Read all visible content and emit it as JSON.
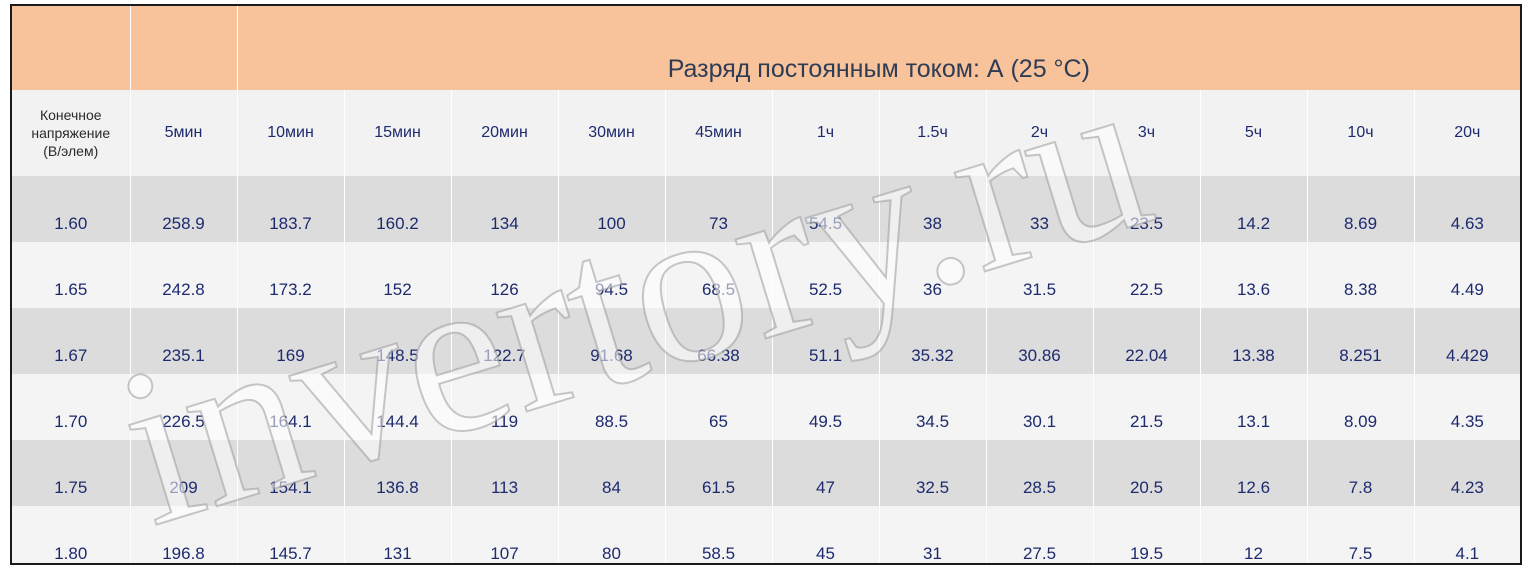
{
  "table": {
    "title": "Разряд постоянным током: А (25 °C)",
    "voltage_header": [
      "Конечное",
      "напряжение",
      "(В/элем)"
    ],
    "columns": [
      "5мин",
      "10мин",
      "15мин",
      "20мин",
      "30мин",
      "45мин",
      "1ч",
      "1.5ч",
      "2ч",
      "3ч",
      "5ч",
      "10ч",
      "20ч"
    ],
    "rows": [
      {
        "voltage": "1.60",
        "values": [
          "258.9",
          "183.7",
          "160.2",
          "134",
          "100",
          "73",
          "54.5",
          "38",
          "33",
          "23.5",
          "14.2",
          "8.69",
          "4.63"
        ]
      },
      {
        "voltage": "1.65",
        "values": [
          "242.8",
          "173.2",
          "152",
          "126",
          "94.5",
          "68.5",
          "52.5",
          "36",
          "31.5",
          "22.5",
          "13.6",
          "8.38",
          "4.49"
        ]
      },
      {
        "voltage": "1.67",
        "values": [
          "235.1",
          "169",
          "148.5",
          "122.7",
          "91.68",
          "66.38",
          "51.1",
          "35.32",
          "30.86",
          "22.04",
          "13.38",
          "8.251",
          "4.429"
        ]
      },
      {
        "voltage": "1.70",
        "values": [
          "226.5",
          "164.1",
          "144.4",
          "119",
          "88.5",
          "65",
          "49.5",
          "34.5",
          "30.1",
          "21.5",
          "13.1",
          "8.09",
          "4.35"
        ]
      },
      {
        "voltage": "1.75",
        "values": [
          "209",
          "154.1",
          "136.8",
          "113",
          "84",
          "61.5",
          "47",
          "32.5",
          "28.5",
          "20.5",
          "12.6",
          "7.8",
          "4.23"
        ]
      },
      {
        "voltage": "1.80",
        "values": [
          "196.8",
          "145.7",
          "131",
          "107",
          "80",
          "58.5",
          "45",
          "31",
          "27.5",
          "19.5",
          "12",
          "7.5",
          "4.1"
        ]
      }
    ]
  },
  "watermark": {
    "text": "invertory.ru"
  },
  "colors": {
    "title_band": "#f8c29b",
    "value_text": "#1d2a6e",
    "stripe_dark": "#dcdcdc",
    "stripe_light": "#f4f4f4"
  }
}
